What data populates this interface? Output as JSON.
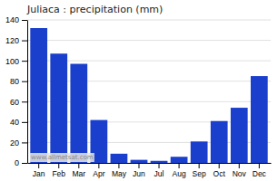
{
  "chart_data": {
    "type": "bar",
    "title": "Juliaca : precipitation (mm)",
    "categories": [
      "Jan",
      "Feb",
      "Mar",
      "Apr",
      "May",
      "Jun",
      "Jul",
      "Aug",
      "Sep",
      "Oct",
      "Nov",
      "Dec"
    ],
    "values": [
      132,
      107,
      97,
      42,
      9,
      3,
      2,
      6,
      21,
      41,
      54,
      85
    ],
    "color": "#1a3fcc",
    "ylim": [
      0,
      140
    ],
    "yticks": [
      0,
      20,
      40,
      60,
      80,
      100,
      120,
      140
    ],
    "grid": true,
    "annotations": [
      "www.allmetsat.com"
    ]
  }
}
